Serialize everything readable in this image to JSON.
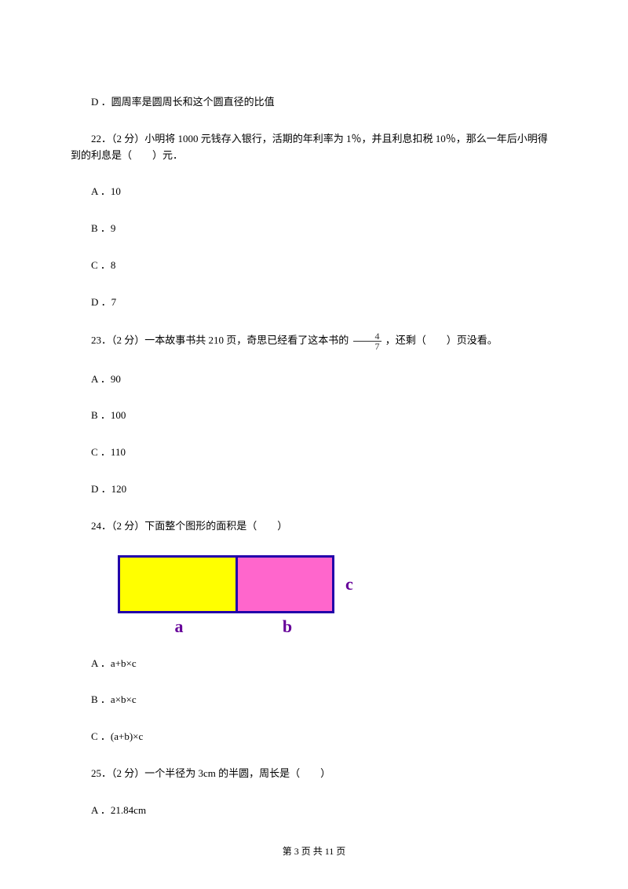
{
  "q21": {
    "optD": "D ．圆周率是圆周长和这个圆直径的比值"
  },
  "q22": {
    "stem": "22．（2 分）小明将 1000 元钱存入银行，活期的年利率为 1％，并且利息扣税 10％，那么一年后小明得到的利息是（　　）元．",
    "A": "A ．10",
    "B": "B ．9",
    "C": "C ．8",
    "D": "D ．7"
  },
  "q23": {
    "stem_pre": "23．（2 分）一本故事书共 210 页，奇思已经看了这本书的 ",
    "frac_num": "4",
    "frac_den": "7",
    "stem_post": " ，还剩（　　）页没看。",
    "A": "A ．90",
    "B": "B ．100",
    "C": "C ．110",
    "D": "D ．120"
  },
  "q24": {
    "stem": "24．（2 分）下面整个图形的面积是（　　）",
    "diagram": {
      "yellow_color": "#ffff00",
      "pink_color": "#ff66cc",
      "border_color": "#2200aa",
      "label_color": "#660099",
      "a": "a",
      "b": "b",
      "c": "c",
      "yellow_w": 150,
      "pink_w": 120,
      "rect_h": 68
    },
    "A": "A ．a+b×c",
    "B": "B ．a×b×c",
    "C": "C ．(a+b)×c"
  },
  "q25": {
    "stem": "25．（2 分）一个半径为 3cm 的半圆，周长是（　　）",
    "A": "A ．21.84cm"
  },
  "footer": "第 3 页 共 11 页"
}
